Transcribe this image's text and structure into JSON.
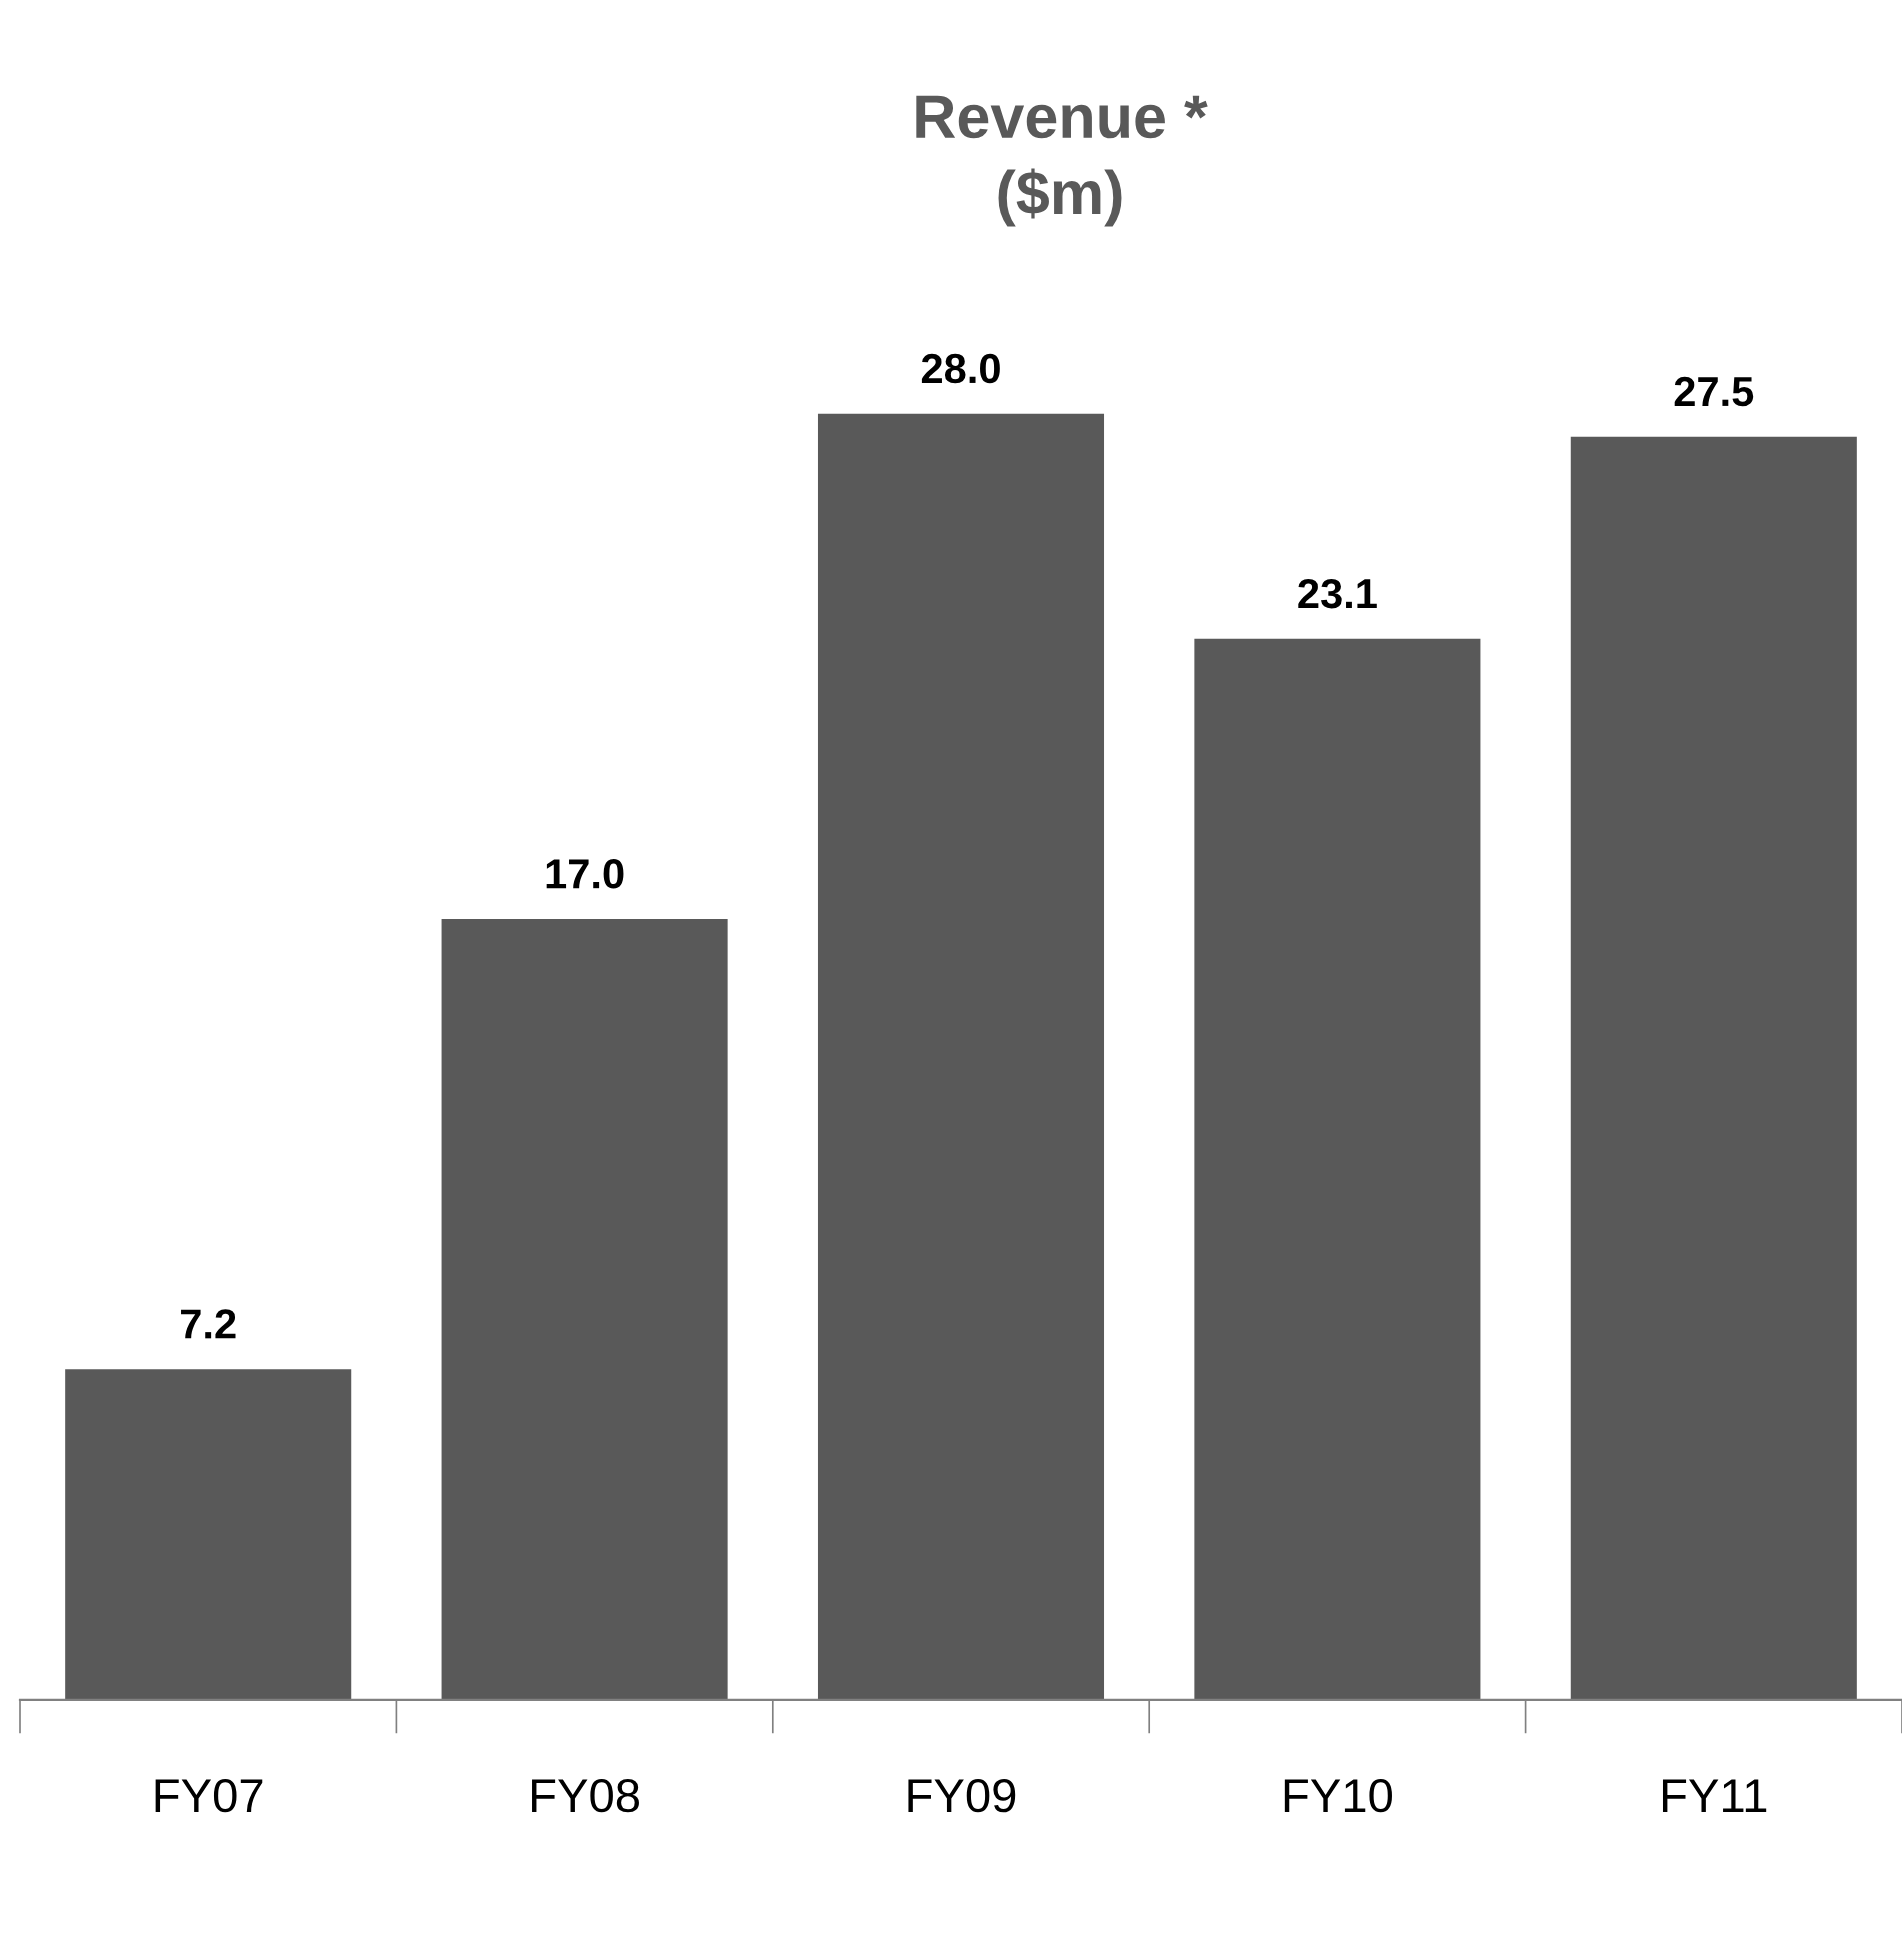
{
  "chart_data": {
    "type": "bar",
    "title": "Revenue *\n($m)",
    "categories": [
      "FY07",
      "FY08",
      "FY09",
      "FY10",
      "FY11"
    ],
    "values": [
      7.2,
      17.0,
      28.0,
      23.1,
      27.5
    ],
    "value_labels": [
      "7.2",
      "17.0",
      "28.0",
      "23.1",
      "27.5"
    ],
    "color": "#595959",
    "grid": false,
    "legend": false,
    "tick_labels": "x"
  }
}
